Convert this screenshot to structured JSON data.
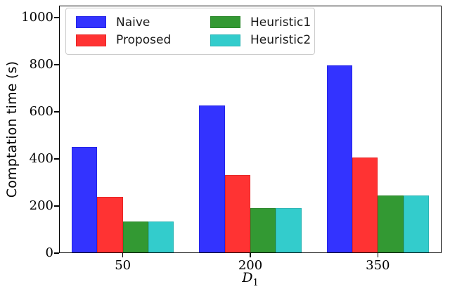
{
  "chart_data": {
    "type": "bar",
    "title": "",
    "xlabel": "D_1",
    "xlabel_base": "D",
    "xlabel_sub": "1",
    "ylabel": "Comptation time (s)",
    "ylim": [
      0,
      1050
    ],
    "yticks": [
      0,
      200,
      400,
      600,
      800,
      1000
    ],
    "grid": false,
    "legend": {
      "position": "upper left",
      "columns": 2,
      "order": "column-major"
    },
    "categories": [
      "50",
      "200",
      "350"
    ],
    "series": [
      {
        "name": "Naive",
        "color": "#3333ff",
        "edge": "#2424e8",
        "values": [
          450,
          625,
          795
        ]
      },
      {
        "name": "Proposed",
        "color": "#ff3333",
        "edge": "#e82424",
        "values": [
          240,
          330,
          405
        ]
      },
      {
        "name": "Heuristic1",
        "color": "#339933",
        "edge": "#2a872a",
        "values": [
          135,
          190,
          245
        ]
      },
      {
        "name": "Heuristic2",
        "color": "#33cccc",
        "edge": "#2ab5b5",
        "values": [
          135,
          190,
          245
        ]
      }
    ]
  }
}
